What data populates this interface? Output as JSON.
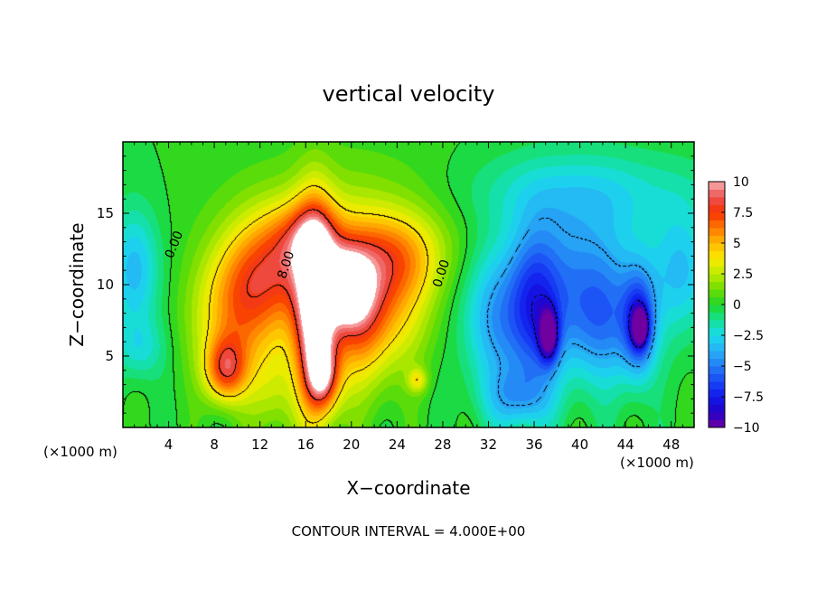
{
  "chart_data": {
    "type": "heatmap",
    "title": "vertical velocity",
    "xlabel": "X−coordinate",
    "ylabel": "Z−coordinate",
    "x_unit_label": "(×1000 m)",
    "x_unit_label_right": "(×1000 m)",
    "footer": "CONTOUR INTERVAL = 4.000E+00",
    "xlim": [
      0,
      50
    ],
    "ylim": [
      0,
      20
    ],
    "xticks": [
      4,
      8,
      12,
      16,
      20,
      24,
      28,
      32,
      36,
      40,
      44,
      48
    ],
    "yticks": [
      5,
      10,
      15
    ],
    "colorbar": {
      "min": -10,
      "max": 10,
      "tick_values": [
        10,
        7.5,
        5,
        2.5,
        0,
        -2.5,
        -5,
        -7.5,
        -10
      ],
      "tick_labels": [
        "10",
        "7.5",
        "5",
        "2.5",
        "0",
        "−2.5",
        "−5",
        "−7.5",
        "−10"
      ]
    },
    "contour_labels": [
      {
        "text": "0.00",
        "x": 4.8,
        "y": 12.7,
        "rotate": -68
      },
      {
        "text": "8.00",
        "x": 14.6,
        "y": 11.3,
        "rotate": -72
      },
      {
        "text": "0.00",
        "x": 28.2,
        "y": 10.7,
        "rotate": -72
      }
    ],
    "features": [
      {
        "x": 9.0,
        "y": 4.0,
        "sx": 1.3,
        "sy": 1.6,
        "a": 6.5
      },
      {
        "x": 9.8,
        "y": 7.6,
        "sx": 2.6,
        "sy": 3.0,
        "a": 4.5
      },
      {
        "x": 12.8,
        "y": 11.0,
        "sx": 3.0,
        "sy": 2.8,
        "a": 6.0
      },
      {
        "x": 16.2,
        "y": 13.3,
        "sx": 2.2,
        "sy": 1.8,
        "a": 4.0
      },
      {
        "x": 16.8,
        "y": 8.0,
        "sx": 1.2,
        "sy": 5.0,
        "a": 9.0
      },
      {
        "x": 17.6,
        "y": 3.5,
        "sx": 1.0,
        "sy": 1.6,
        "a": 5.0
      },
      {
        "x": 19.5,
        "y": 9.8,
        "sx": 1.3,
        "sy": 1.7,
        "a": 6.5
      },
      {
        "x": 21.0,
        "y": 8.6,
        "sx": 2.0,
        "sy": 3.0,
        "a": 5.5
      },
      {
        "x": 19.0,
        "y": 7.0,
        "sx": 3.5,
        "sy": 4.0,
        "a": 3.0
      },
      {
        "x": 23.5,
        "y": 12.0,
        "sx": 3.2,
        "sy": 2.2,
        "a": 4.5
      },
      {
        "x": 25.0,
        "y": 8.5,
        "sx": 2.0,
        "sy": 3.0,
        "a": 2.0
      },
      {
        "x": 20.0,
        "y": 15.5,
        "sx": 7.0,
        "sy": 3.0,
        "a": 1.5
      },
      {
        "x": 25.8,
        "y": 3.3,
        "sx": 0.6,
        "sy": 0.6,
        "a": 3.0
      },
      {
        "x": 13.0,
        "y": 2.5,
        "sx": 1.5,
        "sy": 2.5,
        "a": 2.0
      },
      {
        "x": 1.0,
        "y": 11.0,
        "sx": 1.5,
        "sy": 3.0,
        "a": -3.5
      },
      {
        "x": 1.5,
        "y": 5.5,
        "sx": 1.5,
        "sy": 1.5,
        "a": -2.0
      },
      {
        "x": 32.5,
        "y": 7.5,
        "sx": 2.0,
        "sy": 3.5,
        "a": -3.5
      },
      {
        "x": 36.0,
        "y": 8.0,
        "sx": 1.6,
        "sy": 4.0,
        "a": -5.0
      },
      {
        "x": 37.3,
        "y": 6.4,
        "sx": 0.6,
        "sy": 1.3,
        "a": -6.5
      },
      {
        "x": 40.0,
        "y": 10.5,
        "sx": 4.0,
        "sy": 4.0,
        "a": -4.0
      },
      {
        "x": 42.0,
        "y": 7.0,
        "sx": 2.5,
        "sy": 3.0,
        "a": -3.0
      },
      {
        "x": 45.2,
        "y": 7.2,
        "sx": 1.0,
        "sy": 2.5,
        "a": -5.5
      },
      {
        "x": 45.3,
        "y": 7.0,
        "sx": 0.5,
        "sy": 0.9,
        "a": -6.0
      },
      {
        "x": 49.0,
        "y": 11.0,
        "sx": 1.8,
        "sy": 3.0,
        "a": -3.0
      },
      {
        "x": 40.0,
        "y": 16.5,
        "sx": 8.0,
        "sy": 2.0,
        "a": -2.0
      },
      {
        "x": 34.5,
        "y": 2.0,
        "sx": 2.0,
        "sy": 1.5,
        "a": -3.0
      }
    ]
  }
}
